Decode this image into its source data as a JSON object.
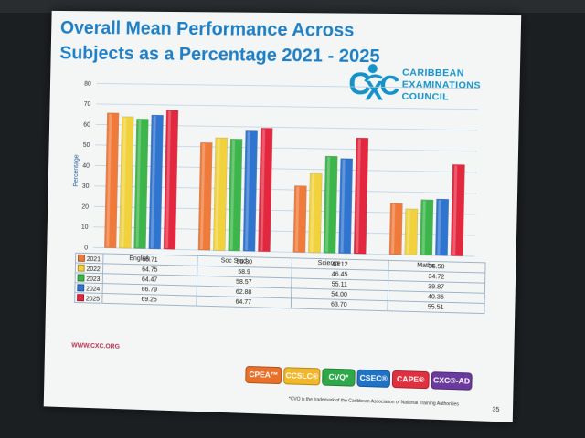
{
  "slide": {
    "title_line1": "Overall Mean Performance Across",
    "title_line2": "Subjects as a Percentage 2021 - 2025",
    "logo_line1": "CARIBBEAN",
    "logo_line2": "EXAMINATIONS",
    "logo_line3": "COUNCIL",
    "website": "WWW.CXC.ORG",
    "trademark_note": "*CVQ is the trademark of the Caribbean Association of National Training Authorities",
    "page_number": "35",
    "badges": [
      {
        "label": "CPEA™",
        "color": "#e8702a"
      },
      {
        "label": "CCSLC®",
        "color": "#f2b728"
      },
      {
        "label": "CVQ*",
        "color": "#2fa84a"
      },
      {
        "label": "CSEC®",
        "color": "#1f72c4"
      },
      {
        "label": "CAPE®",
        "color": "#e03040"
      },
      {
        "label": "CXC®-AD",
        "color": "#6a3a9c"
      }
    ]
  },
  "chart_data": {
    "type": "bar",
    "ylabel": "Percentage",
    "ylim": [
      0,
      80
    ],
    "yticks": [
      0,
      10,
      20,
      30,
      40,
      50,
      60,
      70,
      80
    ],
    "grid": true,
    "categories": [
      "English",
      "Soc Stud",
      "Science",
      "Maths"
    ],
    "series": [
      {
        "name": "2021",
        "color": "#ef7a3a",
        "values": [
          65.71,
          52.0,
          32.0,
          24.5
        ]
      },
      {
        "name": "2022",
        "color": "#f1d23c",
        "values": [
          64.0,
          54.5,
          38.0,
          22.0
        ]
      },
      {
        "name": "2023",
        "color": "#3cb54a",
        "values": [
          63.0,
          54.0,
          46.5,
          26.5
        ]
      },
      {
        "name": "2024",
        "color": "#2f74cf",
        "values": [
          65.0,
          58.0,
          45.5,
          27.0
        ]
      },
      {
        "name": "2025",
        "color": "#e3273f",
        "values": [
          67.5,
          59.5,
          55.5,
          43.5
        ]
      }
    ],
    "table_rows": [
      [
        "65.71",
        "56.30",
        "40.12",
        "36.50"
      ],
      [
        "64.75",
        "58.9",
        "46.45",
        "34.72"
      ],
      [
        "64.47",
        "58.57",
        "55.11",
        "39.87"
      ],
      [
        "66.79",
        "62.88",
        "54.00",
        "40.36"
      ],
      [
        "69.25",
        "64.77",
        "63.70",
        "55.51"
      ]
    ]
  }
}
